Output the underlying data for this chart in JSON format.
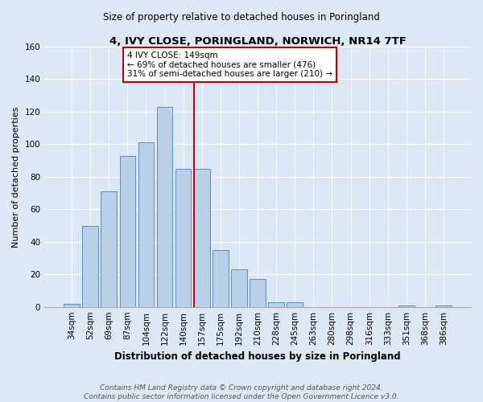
{
  "title": "4, IVY CLOSE, PORINGLAND, NORWICH, NR14 7TF",
  "subtitle": "Size of property relative to detached houses in Poringland",
  "xlabel": "Distribution of detached houses by size in Poringland",
  "ylabel": "Number of detached properties",
  "bar_labels": [
    "34sqm",
    "52sqm",
    "69sqm",
    "87sqm",
    "104sqm",
    "122sqm",
    "140sqm",
    "157sqm",
    "175sqm",
    "192sqm",
    "210sqm",
    "228sqm",
    "245sqm",
    "263sqm",
    "280sqm",
    "298sqm",
    "316sqm",
    "333sqm",
    "351sqm",
    "368sqm",
    "386sqm"
  ],
  "bar_values": [
    2,
    50,
    71,
    93,
    101,
    123,
    85,
    85,
    35,
    23,
    17,
    3,
    3,
    0,
    0,
    0,
    0,
    0,
    1,
    0,
    1
  ],
  "bar_color": "#b8d0e8",
  "bar_edge_color": "#5a8fc0",
  "vline_index": 7,
  "vline_color": "#cc0000",
  "annotation_title": "4 IVY CLOSE: 149sqm",
  "annotation_line1": "← 69% of detached houses are smaller (476)",
  "annotation_line2": "31% of semi-detached houses are larger (210) →",
  "annotation_box_color": "#ffffff",
  "annotation_box_edge": "#cc0000",
  "ylim": [
    0,
    160
  ],
  "yticks": [
    0,
    20,
    40,
    60,
    80,
    100,
    120,
    140,
    160
  ],
  "footer1": "Contains HM Land Registry data © Crown copyright and database right 2024.",
  "footer2": "Contains public sector information licensed under the Open Government Licence v3.0.",
  "bg_color": "#dce8f5",
  "plot_bg_color": "#dce8f5",
  "grid_color": "#ffffff",
  "title_fontsize": 9.5,
  "subtitle_fontsize": 8.5,
  "xlabel_fontsize": 8.5,
  "ylabel_fontsize": 8,
  "tick_fontsize": 7.5,
  "footer_fontsize": 6.5
}
